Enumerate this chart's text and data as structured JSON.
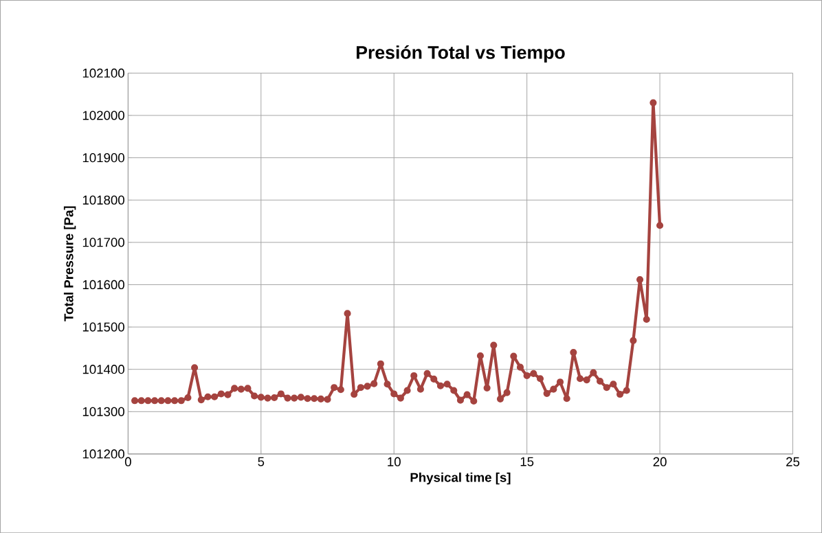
{
  "chart_data": {
    "type": "line",
    "title": "Presión Total vs Tiempo",
    "xlabel": "Physical time [s]",
    "ylabel": "Total Pressure [Pa]",
    "x": [
      0.25,
      0.5,
      0.75,
      1.0,
      1.25,
      1.5,
      1.75,
      2.0,
      2.25,
      2.5,
      2.75,
      3.0,
      3.25,
      3.5,
      3.75,
      4.0,
      4.25,
      4.5,
      4.75,
      5.0,
      5.25,
      5.5,
      5.75,
      6.0,
      6.25,
      6.5,
      6.75,
      7.0,
      7.25,
      7.5,
      7.75,
      8.0,
      8.25,
      8.5,
      8.75,
      9.0,
      9.25,
      9.5,
      9.75,
      10.0,
      10.25,
      10.5,
      10.75,
      11.0,
      11.25,
      11.5,
      11.75,
      12.0,
      12.25,
      12.5,
      12.75,
      13.0,
      13.25,
      13.5,
      13.75,
      14.0,
      14.25,
      14.5,
      14.75,
      15.0,
      15.25,
      15.5,
      15.75,
      16.0,
      16.25,
      16.5,
      16.75,
      17.0,
      17.25,
      17.5,
      17.75,
      18.0,
      18.25,
      18.5,
      18.75,
      19.0,
      19.25,
      19.5,
      19.75,
      20.0
    ],
    "series": [
      {
        "color": "#a5433f",
        "values": [
          101326,
          101326,
          101326,
          101326,
          101326,
          101326,
          101326,
          101326,
          101333,
          101404,
          101328,
          101335,
          101335,
          101342,
          101340,
          101355,
          101353,
          101355,
          101337,
          101334,
          101332,
          101333,
          101342,
          101332,
          101332,
          101334,
          101331,
          101331,
          101330,
          101329,
          101357,
          101352,
          101532,
          101341,
          101357,
          101360,
          101366,
          101413,
          101365,
          101342,
          101332,
          101350,
          101385,
          101353,
          101390,
          101377,
          101361,
          101365,
          101350,
          101327,
          101340,
          101325,
          101432,
          101356,
          101457,
          101330,
          101345,
          101431,
          101405,
          101385,
          101390,
          101378,
          101343,
          101353,
          101370,
          101331,
          101440,
          101378,
          101375,
          101392,
          101372,
          101357,
          101365,
          101341,
          101350,
          101468,
          101612,
          101518,
          102030,
          101740
        ]
      }
    ],
    "xlim": [
      0,
      25
    ],
    "xticks": [
      0,
      5,
      10,
      15,
      20,
      25
    ],
    "ylim": [
      101200,
      102100
    ],
    "yticks": [
      101200,
      101300,
      101400,
      101500,
      101600,
      101700,
      101800,
      101900,
      102000,
      102100
    ],
    "grid": true,
    "marker": "circle",
    "line_style": "solid"
  }
}
